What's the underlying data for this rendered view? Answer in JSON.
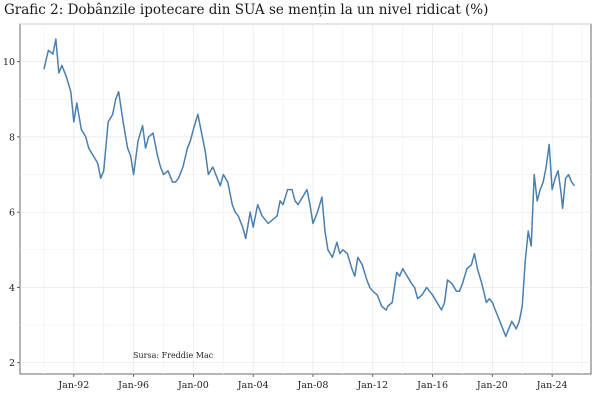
{
  "chart_data": {
    "type": "line",
    "title": "Grafic 2: Dobânzile ipotecare din SUA se mențin la un nivel ridicat (%)",
    "source": "Sursa: Freddie Mac",
    "xlabel": "",
    "ylabel": "",
    "ylim": [
      1.7,
      11.0
    ],
    "xlim": [
      1988.4,
      2026.6
    ],
    "yticks": [
      2,
      4,
      6,
      8,
      10
    ],
    "xticks": [
      {
        "year": 1992,
        "label": "Jan-92"
      },
      {
        "year": 1996,
        "label": "Jan-96"
      },
      {
        "year": 2000,
        "label": "Jan-00"
      },
      {
        "year": 2004,
        "label": "Jan-04"
      },
      {
        "year": 2008,
        "label": "Jan-08"
      },
      {
        "year": 2012,
        "label": "Jan-12"
      },
      {
        "year": 2016,
        "label": "Jan-16"
      },
      {
        "year": 2020,
        "label": "Jan-20"
      },
      {
        "year": 2024,
        "label": "Jan-24"
      }
    ],
    "grid": true,
    "line_color": "#4a7faf",
    "series": [
      {
        "name": "",
        "points": [
          [
            1990.0,
            9.8
          ],
          [
            1990.3,
            10.3
          ],
          [
            1990.6,
            10.2
          ],
          [
            1990.8,
            10.6
          ],
          [
            1991.0,
            9.7
          ],
          [
            1991.2,
            9.9
          ],
          [
            1991.5,
            9.6
          ],
          [
            1991.8,
            9.2
          ],
          [
            1992.0,
            8.4
          ],
          [
            1992.2,
            8.9
          ],
          [
            1992.5,
            8.2
          ],
          [
            1992.8,
            8.0
          ],
          [
            1993.0,
            7.7
          ],
          [
            1993.3,
            7.5
          ],
          [
            1993.6,
            7.3
          ],
          [
            1993.8,
            6.9
          ],
          [
            1994.0,
            7.1
          ],
          [
            1994.3,
            8.4
          ],
          [
            1994.6,
            8.6
          ],
          [
            1994.8,
            9.0
          ],
          [
            1995.0,
            9.2
          ],
          [
            1995.3,
            8.4
          ],
          [
            1995.6,
            7.7
          ],
          [
            1995.8,
            7.5
          ],
          [
            1996.0,
            7.0
          ],
          [
            1996.3,
            7.9
          ],
          [
            1996.6,
            8.3
          ],
          [
            1996.8,
            7.7
          ],
          [
            1997.0,
            8.0
          ],
          [
            1997.3,
            8.1
          ],
          [
            1997.6,
            7.5
          ],
          [
            1997.8,
            7.2
          ],
          [
            1998.0,
            7.0
          ],
          [
            1998.3,
            7.1
          ],
          [
            1998.6,
            6.8
          ],
          [
            1998.8,
            6.8
          ],
          [
            1999.0,
            6.9
          ],
          [
            1999.3,
            7.2
          ],
          [
            1999.6,
            7.7
          ],
          [
            1999.8,
            7.9
          ],
          [
            2000.0,
            8.2
          ],
          [
            2000.3,
            8.6
          ],
          [
            2000.6,
            8.0
          ],
          [
            2000.8,
            7.6
          ],
          [
            2001.0,
            7.0
          ],
          [
            2001.3,
            7.2
          ],
          [
            2001.6,
            6.9
          ],
          [
            2001.8,
            6.7
          ],
          [
            2002.0,
            7.0
          ],
          [
            2002.3,
            6.8
          ],
          [
            2002.6,
            6.2
          ],
          [
            2002.8,
            6.0
          ],
          [
            2003.0,
            5.9
          ],
          [
            2003.3,
            5.6
          ],
          [
            2003.5,
            5.3
          ],
          [
            2003.8,
            6.0
          ],
          [
            2004.0,
            5.6
          ],
          [
            2004.3,
            6.2
          ],
          [
            2004.6,
            5.9
          ],
          [
            2004.8,
            5.8
          ],
          [
            2005.0,
            5.7
          ],
          [
            2005.3,
            5.8
          ],
          [
            2005.6,
            5.9
          ],
          [
            2005.8,
            6.3
          ],
          [
            2006.0,
            6.2
          ],
          [
            2006.3,
            6.6
          ],
          [
            2006.6,
            6.6
          ],
          [
            2006.8,
            6.3
          ],
          [
            2007.0,
            6.2
          ],
          [
            2007.3,
            6.4
          ],
          [
            2007.6,
            6.6
          ],
          [
            2007.8,
            6.2
          ],
          [
            2008.0,
            5.7
          ],
          [
            2008.3,
            6.0
          ],
          [
            2008.6,
            6.4
          ],
          [
            2008.8,
            5.5
          ],
          [
            2009.0,
            5.0
          ],
          [
            2009.3,
            4.8
          ],
          [
            2009.6,
            5.2
          ],
          [
            2009.8,
            4.9
          ],
          [
            2010.0,
            5.0
          ],
          [
            2010.3,
            4.9
          ],
          [
            2010.6,
            4.5
          ],
          [
            2010.8,
            4.3
          ],
          [
            2011.0,
            4.8
          ],
          [
            2011.3,
            4.6
          ],
          [
            2011.6,
            4.2
          ],
          [
            2011.8,
            4.0
          ],
          [
            2012.0,
            3.9
          ],
          [
            2012.3,
            3.8
          ],
          [
            2012.6,
            3.5
          ],
          [
            2012.9,
            3.4
          ],
          [
            2013.0,
            3.5
          ],
          [
            2013.3,
            3.6
          ],
          [
            2013.6,
            4.4
          ],
          [
            2013.8,
            4.3
          ],
          [
            2014.0,
            4.5
          ],
          [
            2014.3,
            4.3
          ],
          [
            2014.6,
            4.1
          ],
          [
            2014.8,
            4.0
          ],
          [
            2015.0,
            3.7
          ],
          [
            2015.3,
            3.8
          ],
          [
            2015.6,
            4.0
          ],
          [
            2015.8,
            3.9
          ],
          [
            2016.0,
            3.8
          ],
          [
            2016.3,
            3.6
          ],
          [
            2016.6,
            3.4
          ],
          [
            2016.8,
            3.6
          ],
          [
            2017.0,
            4.2
          ],
          [
            2017.3,
            4.1
          ],
          [
            2017.6,
            3.9
          ],
          [
            2017.8,
            3.9
          ],
          [
            2018.0,
            4.1
          ],
          [
            2018.3,
            4.5
          ],
          [
            2018.6,
            4.6
          ],
          [
            2018.8,
            4.9
          ],
          [
            2019.0,
            4.5
          ],
          [
            2019.3,
            4.1
          ],
          [
            2019.6,
            3.6
          ],
          [
            2019.8,
            3.7
          ],
          [
            2020.0,
            3.6
          ],
          [
            2020.3,
            3.3
          ],
          [
            2020.6,
            3.0
          ],
          [
            2020.9,
            2.7
          ],
          [
            2021.0,
            2.8
          ],
          [
            2021.3,
            3.1
          ],
          [
            2021.6,
            2.9
          ],
          [
            2021.8,
            3.1
          ],
          [
            2022.0,
            3.5
          ],
          [
            2022.2,
            4.7
          ],
          [
            2022.4,
            5.5
          ],
          [
            2022.6,
            5.1
          ],
          [
            2022.8,
            7.0
          ],
          [
            2023.0,
            6.3
          ],
          [
            2023.2,
            6.6
          ],
          [
            2023.4,
            6.8
          ],
          [
            2023.6,
            7.2
          ],
          [
            2023.8,
            7.8
          ],
          [
            2024.0,
            6.6
          ],
          [
            2024.2,
            6.9
          ],
          [
            2024.4,
            7.1
          ],
          [
            2024.6,
            6.5
          ],
          [
            2024.7,
            6.1
          ],
          [
            2024.9,
            6.9
          ],
          [
            2025.1,
            7.0
          ],
          [
            2025.3,
            6.8
          ],
          [
            2025.5,
            6.7
          ]
        ]
      }
    ]
  }
}
